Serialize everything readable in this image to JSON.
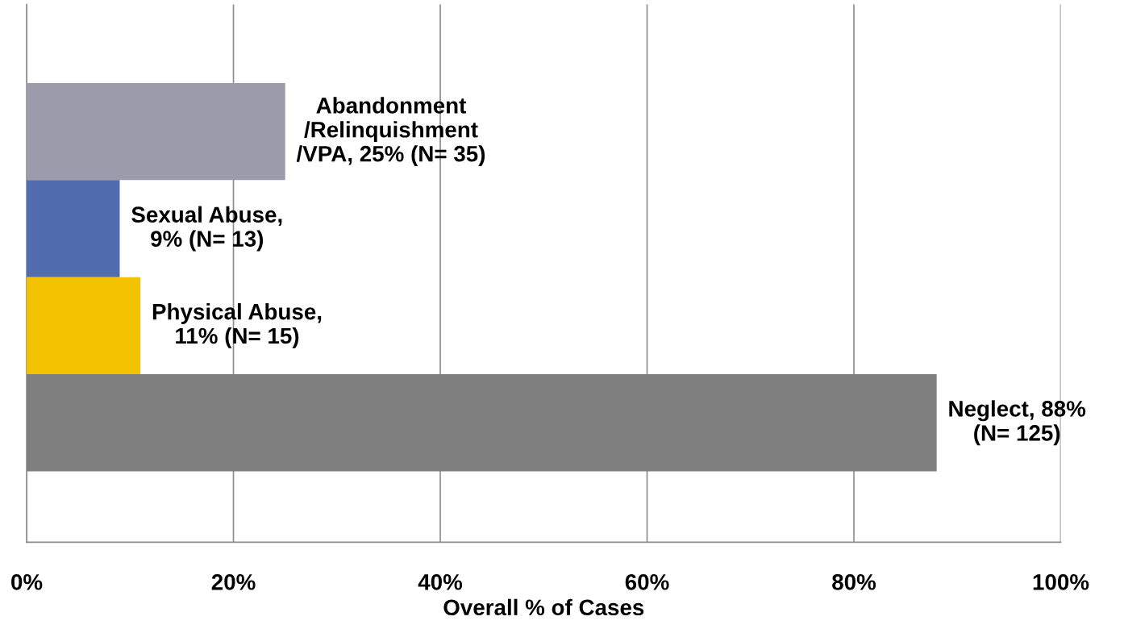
{
  "chart_data": {
    "type": "bar",
    "orientation": "horizontal",
    "xlabel": "Overall % of Cases",
    "categories": [
      null,
      null,
      null,
      null
    ],
    "values": [
      25,
      9,
      11,
      88
    ],
    "colors": [
      "#9b9bab",
      "#516db0",
      "#f3c200",
      "#7f7f7f"
    ],
    "value_labels": [
      "Abandonment\n/Relinquishment\n/VPA, 25% (N= 35)",
      "Sexual Abuse,\n9% (N= 13)",
      "Physical Abuse,\n11% (N= 15)",
      "Neglect, 88%\n(N= 125)"
    ],
    "xlim": [
      0,
      100
    ],
    "xticks": [
      {
        "value": 0,
        "label": "0%"
      },
      {
        "value": 20,
        "label": "20%"
      },
      {
        "value": 40,
        "label": "40%"
      },
      {
        "value": 60,
        "label": "60%"
      },
      {
        "value": 80,
        "label": "80%"
      },
      {
        "value": 100,
        "label": "100%"
      }
    ],
    "grid": "x",
    "legend": false
  }
}
